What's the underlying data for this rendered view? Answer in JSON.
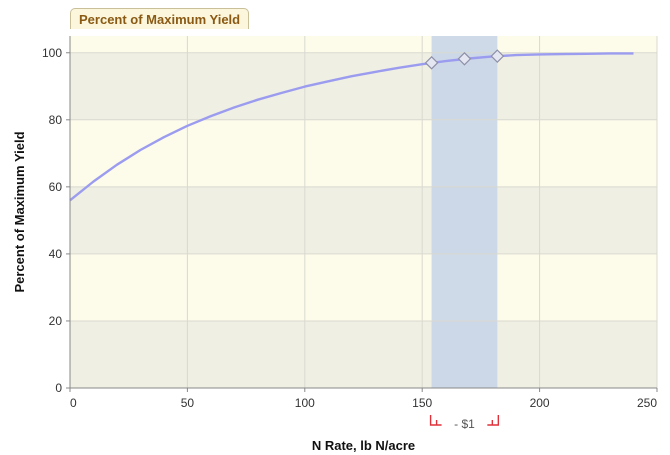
{
  "chart_data": {
    "type": "line",
    "title": "Percent of Maximum Yield",
    "xlabel": "N Rate, lb N/acre",
    "ylabel": "Percent of Maximum Yield",
    "xlim": [
      0,
      250
    ],
    "ylim": [
      0,
      105
    ],
    "x_ticks": [
      0,
      50,
      100,
      150,
      200,
      250
    ],
    "y_ticks": [
      0,
      20,
      40,
      60,
      80,
      100
    ],
    "grid": true,
    "series": [
      {
        "color": "#9b9cf0",
        "x": [
          0,
          10,
          20,
          30,
          40,
          50,
          60,
          70,
          80,
          90,
          100,
          110,
          120,
          130,
          140,
          150,
          160,
          170,
          180,
          190,
          200,
          210,
          220,
          230,
          240
        ],
        "y": [
          56,
          61.6,
          66.6,
          71.0,
          74.8,
          78.2,
          81.1,
          83.7,
          86.0,
          88.0,
          89.9,
          91.5,
          93.0,
          94.3,
          95.5,
          96.6,
          97.5,
          98.3,
          98.9,
          99.3,
          99.5,
          99.6,
          99.7,
          99.8,
          99.8
        ]
      }
    ],
    "markers": [
      {
        "x": 154,
        "y": 97.0
      },
      {
        "x": 168,
        "y": 98.2
      },
      {
        "x": 182,
        "y": 99.0
      }
    ],
    "highlight_band": {
      "x_from": 154,
      "x_to": 182,
      "color": "#c6d3e8"
    },
    "range_label": "- $1"
  }
}
